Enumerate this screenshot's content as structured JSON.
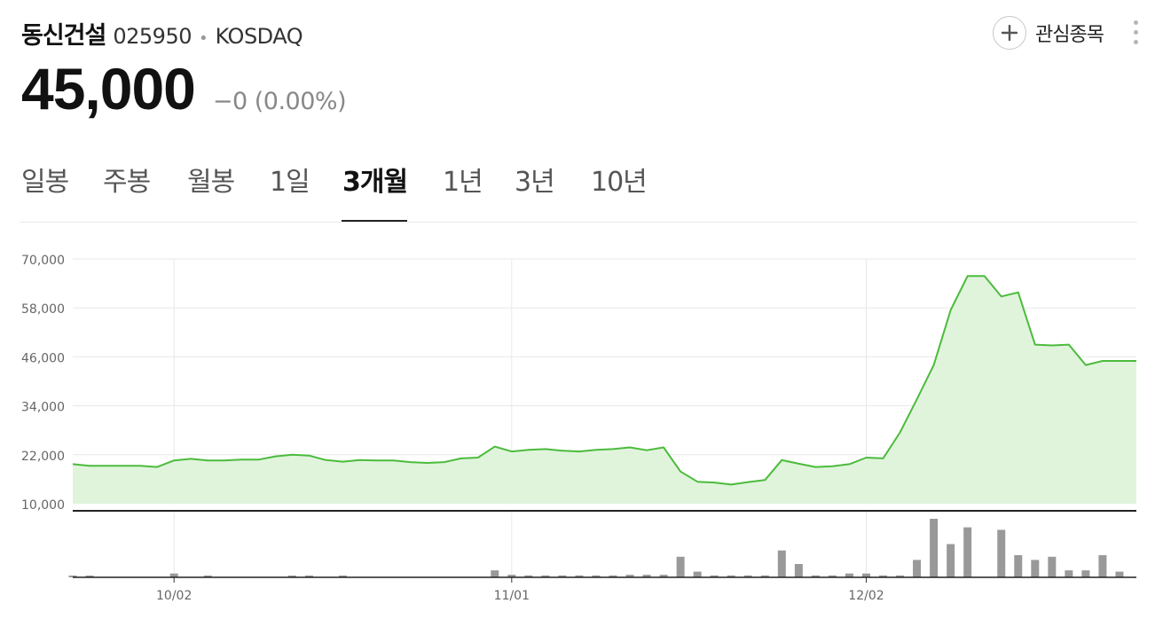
{
  "header": {
    "name": "동신건설",
    "code": "025950",
    "separator": "•",
    "market": "KOSDAQ",
    "favorite_label": "관심종목"
  },
  "quote": {
    "price": "45,000",
    "change": "−0 (0.00%)"
  },
  "tabs": [
    {
      "label": "일봉",
      "active": false
    },
    {
      "label": "주봉",
      "active": false
    },
    {
      "label": "월봉",
      "active": false
    },
    {
      "label": "1일",
      "active": false
    },
    {
      "label": "3개월",
      "active": true
    },
    {
      "label": "1년",
      "active": false
    },
    {
      "label": "3년",
      "active": false
    },
    {
      "label": "10년",
      "active": false
    }
  ],
  "colors": {
    "line": "#4cbb3c",
    "area": "#e0f4dc",
    "volume": "#999999",
    "grid": "#e8e8e8",
    "axis_text": "#666666"
  },
  "chart_data": {
    "type": "area",
    "y_ticks": [
      "70,000",
      "58,000",
      "46,000",
      "34,000",
      "22,000",
      "10,000"
    ],
    "ylim": [
      10000,
      70000
    ],
    "x_ticks": [
      {
        "label": "10/02",
        "index": 6
      },
      {
        "label": "11/01",
        "index": 26
      },
      {
        "label": "12/02",
        "index": 47
      }
    ],
    "x_count": 64,
    "series": [
      {
        "values": [
          19700,
          19300,
          19300,
          19300,
          19300,
          19000,
          20600,
          21000,
          20600,
          20600,
          20800,
          20800,
          21600,
          22000,
          21800,
          20700,
          20300,
          20700,
          20600,
          20600,
          20200,
          20000,
          20200,
          21100,
          21300,
          24000,
          22800,
          23200,
          23400,
          23000,
          22800,
          23200,
          23400,
          23800,
          23100,
          23800,
          17900,
          15400,
          15200,
          14700,
          15300,
          15800,
          20700,
          19800,
          19000,
          19200,
          19700,
          21300,
          21100,
          27500,
          35600,
          44000,
          57500,
          65800,
          65800,
          60800,
          61800,
          49000,
          48800,
          49000,
          44000,
          45000,
          45000,
          45000
        ]
      }
    ],
    "volume": [
      0.2,
      0.2,
      0,
      0,
      0,
      0,
      1.2,
      0,
      0.2,
      0,
      0,
      0,
      0,
      0.2,
      0.2,
      0,
      0.2,
      0,
      0,
      0,
      0,
      0,
      0,
      0,
      0,
      2.2,
      0.8,
      0.6,
      0.6,
      0.6,
      0.6,
      0.6,
      0.6,
      0.8,
      0.8,
      0.8,
      6.5,
      1.8,
      0.6,
      0.6,
      0.6,
      0.6,
      8.5,
      4.2,
      0.6,
      0.6,
      1.2,
      1.2,
      0.6,
      0.6,
      5.5,
      18.5,
      10.5,
      15.8,
      0,
      15.0,
      7.0,
      5.5,
      6.5,
      2.2,
      2.2,
      7.0,
      1.8,
      0
    ]
  }
}
